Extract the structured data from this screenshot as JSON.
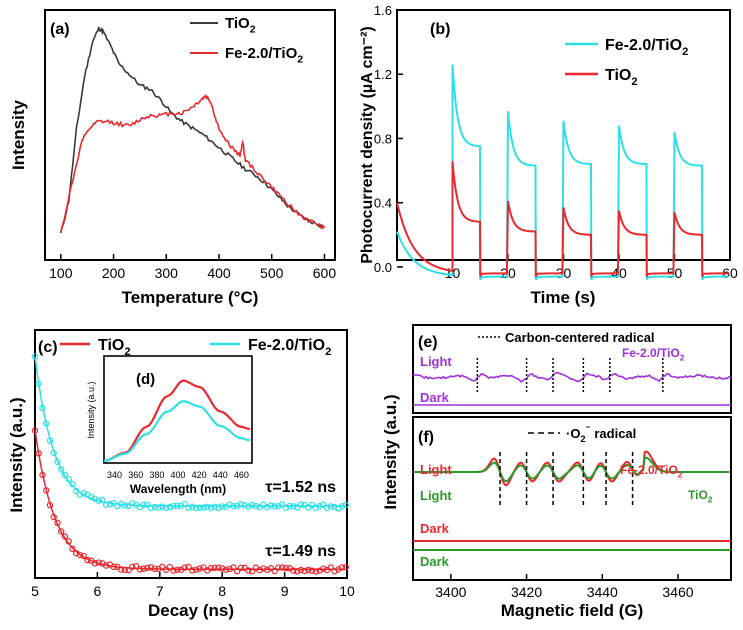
{
  "chart_data": [
    {
      "panel": "(a)",
      "type": "line",
      "title": "",
      "xlabel": "Temperature (°C)",
      "ylabel": "Intensity",
      "xlim": [
        70,
        620
      ],
      "ylim": [
        0,
        1
      ],
      "xticks": [
        100,
        200,
        300,
        400,
        500,
        600
      ],
      "legend_position": "top-right",
      "series": [
        {
          "name": "TiO2",
          "legend_main": "TiO",
          "legend_sub": "2",
          "color": "#3a3a3a",
          "points": [
            [
              100,
              0.03
            ],
            [
              115,
              0.18
            ],
            [
              130,
              0.52
            ],
            [
              145,
              0.76
            ],
            [
              160,
              0.92
            ],
            [
              172,
              0.985
            ],
            [
              180,
              0.97
            ],
            [
              195,
              0.9
            ],
            [
              210,
              0.82
            ],
            [
              230,
              0.77
            ],
            [
              250,
              0.72
            ],
            [
              270,
              0.7
            ],
            [
              290,
              0.65
            ],
            [
              310,
              0.59
            ],
            [
              330,
              0.55
            ],
            [
              350,
              0.52
            ],
            [
              370,
              0.49
            ],
            [
              390,
              0.45
            ],
            [
              410,
              0.41
            ],
            [
              430,
              0.37
            ],
            [
              450,
              0.33
            ],
            [
              470,
              0.3
            ],
            [
              490,
              0.26
            ],
            [
              510,
              0.21
            ],
            [
              530,
              0.16
            ],
            [
              550,
              0.12
            ],
            [
              570,
              0.09
            ],
            [
              590,
              0.07
            ],
            [
              600,
              0.055
            ]
          ]
        },
        {
          "name": "Fe-2.0/TiO2",
          "legend_main": "Fe-2.0/TiO",
          "legend_sub": "2",
          "color": "#e8292e",
          "points": [
            [
              100,
              0.03
            ],
            [
              120,
              0.25
            ],
            [
              140,
              0.46
            ],
            [
              155,
              0.52
            ],
            [
              170,
              0.55
            ],
            [
              190,
              0.55
            ],
            [
              210,
              0.54
            ],
            [
              230,
              0.53
            ],
            [
              250,
              0.56
            ],
            [
              270,
              0.58
            ],
            [
              290,
              0.58
            ],
            [
              310,
              0.59
            ],
            [
              330,
              0.59
            ],
            [
              350,
              0.62
            ],
            [
              365,
              0.65
            ],
            [
              375,
              0.67
            ],
            [
              385,
              0.64
            ],
            [
              395,
              0.55
            ],
            [
              410,
              0.47
            ],
            [
              425,
              0.43
            ],
            [
              440,
              0.39
            ],
            [
              445,
              0.46
            ],
            [
              450,
              0.37
            ],
            [
              470,
              0.32
            ],
            [
              490,
              0.27
            ],
            [
              510,
              0.22
            ],
            [
              530,
              0.17
            ],
            [
              550,
              0.12
            ],
            [
              570,
              0.09
            ],
            [
              590,
              0.07
            ],
            [
              600,
              0.055
            ]
          ]
        }
      ]
    },
    {
      "panel": "(b)",
      "type": "line",
      "title": "",
      "xlabel": "Time (s)",
      "ylabel": "Photocurrent density (µA cm⁻²)",
      "xlim": [
        0,
        60
      ],
      "ylim": [
        -0.1,
        1.6
      ],
      "xticks": [
        10,
        20,
        30,
        40,
        50,
        60
      ],
      "yticks": [
        0.0,
        0.4,
        0.8,
        1.2,
        1.6
      ],
      "legend_position": "top-right",
      "on_times": [
        10,
        20,
        30,
        40,
        50
      ],
      "off_times": [
        15,
        25,
        35,
        45,
        55
      ],
      "series": [
        {
          "name": "Fe-2.0/TiO2",
          "legend_main": "Fe-2.0/TiO",
          "legend_sub": "2",
          "color": "#2de0e8",
          "initial": 0.22,
          "dark_floor": -0.06,
          "peaks": [
            1.26,
            0.97,
            0.91,
            0.88,
            0.84
          ],
          "plateaus": [
            0.75,
            0.63,
            0.64,
            0.64,
            0.63
          ]
        },
        {
          "name": "TiO2",
          "legend_main": "TiO",
          "legend_sub": "2",
          "color": "#e8292e",
          "initial": 0.4,
          "dark_floor": -0.04,
          "peaks": [
            0.66,
            0.41,
            0.37,
            0.35,
            0.34
          ],
          "plateaus": [
            0.28,
            0.22,
            0.2,
            0.2,
            0.2
          ]
        }
      ]
    },
    {
      "panel": "(c)",
      "type": "scatter",
      "title": "",
      "xlabel": "Decay (ns)",
      "ylabel": "Intensity (a.u.)",
      "xlim": [
        5,
        10
      ],
      "ylim": [
        0,
        1
      ],
      "xticks": [
        5,
        6,
        7,
        8,
        9,
        10
      ],
      "legend_position": "top",
      "series": [
        {
          "name": "TiO2",
          "legend_main": "TiO",
          "legend_sub": "2",
          "color": "#e8292e",
          "start": 0.63,
          "baseline": 0.025,
          "tau_display": 0.32,
          "lifetime_label": "τ=1.49 ns"
        },
        {
          "name": "Fe-2.0/TiO2",
          "legend_main": "Fe-2.0/TiO",
          "legend_sub": "2",
          "color": "#2de0e8",
          "start": 0.95,
          "baseline": 0.3,
          "tau_display": 0.3,
          "lifetime_label": "τ=1.52 ns"
        }
      ]
    },
    {
      "panel": "(d)",
      "type": "line",
      "title": "",
      "xlabel": "Wavelength (nm)",
      "ylabel": "Intensity (a.u.)",
      "xlim": [
        330,
        470
      ],
      "ylim": [
        0,
        1
      ],
      "xticks": [
        340,
        360,
        380,
        400,
        420,
        440,
        460
      ],
      "series": [
        {
          "name": "TiO2",
          "color": "#e8292e",
          "points": [
            [
              330,
              0.02
            ],
            [
              350,
              0.1
            ],
            [
              370,
              0.35
            ],
            [
              390,
              0.65
            ],
            [
              405,
              0.8
            ],
            [
              420,
              0.74
            ],
            [
              440,
              0.5
            ],
            [
              460,
              0.35
            ],
            [
              468,
              0.33
            ]
          ]
        },
        {
          "name": "Fe-2.0/TiO2",
          "color": "#2de0e8",
          "points": [
            [
              330,
              0.02
            ],
            [
              350,
              0.09
            ],
            [
              370,
              0.28
            ],
            [
              390,
              0.5
            ],
            [
              405,
              0.6
            ],
            [
              420,
              0.55
            ],
            [
              440,
              0.36
            ],
            [
              460,
              0.24
            ],
            [
              468,
              0.22
            ]
          ]
        }
      ]
    },
    {
      "panel": "(e)",
      "type": "line",
      "title": "",
      "xlabel": "",
      "ylabel": "",
      "xlim": [
        3390,
        3474
      ],
      "legend_position": "top",
      "annotation": "Carbon-centered radical",
      "sample_label_main": "Fe-2.0/TiO",
      "sample_label_sub": "2",
      "light_label": "Light",
      "dark_label": "Dark",
      "color": "#a030e0",
      "marker_fields": [
        3407,
        3420,
        3427,
        3435,
        3442,
        3456
      ]
    },
    {
      "panel": "(f)",
      "type": "line",
      "title": "",
      "xlabel": "Magnetic field (G)",
      "ylabel": "Intensity (a.u.)",
      "xlim": [
        3390,
        3474
      ],
      "xticks": [
        3400,
        3420,
        3440,
        3460
      ],
      "annotation_prefix": "·O",
      "annotation_sub": "2",
      "annotation_sup": "⁻",
      "annotation_suffix": " radical",
      "marker_fields": [
        3413,
        3420,
        3427,
        3435,
        3441,
        3448
      ],
      "series": [
        {
          "name": "Fe-2.0/TiO2",
          "label_main": "Fe-2.0/TiO",
          "label_sub": "2",
          "light_label": "Light",
          "dark_label": "Dark",
          "color": "#e8292e",
          "amp": 1.0
        },
        {
          "name": "TiO2",
          "label_main": "TiO",
          "label_sub": "2",
          "light_label": "Light",
          "dark_label": "Dark",
          "color": "#2a9a2a",
          "amp": 0.7
        }
      ]
    }
  ],
  "panel_labels": [
    "(a)",
    "(b)",
    "(c)",
    "(d)",
    "(e)",
    "(f)"
  ]
}
